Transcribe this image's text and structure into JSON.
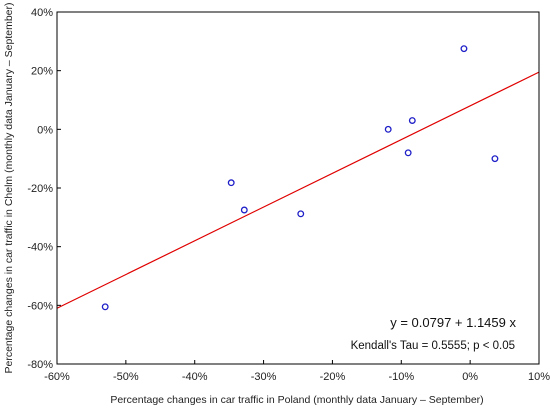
{
  "chart_data": {
    "type": "scatter",
    "title": "",
    "xlabel": "Percentage changes in car traffic in Poland (monthly data January – September)",
    "ylabel": "Percentage changes in car traffic in Chelm (monthly data January – September)",
    "xlim": [
      -60,
      10
    ],
    "ylim": [
      -80,
      40
    ],
    "x_ticks": [
      -60,
      -50,
      -40,
      -30,
      -20,
      -10,
      0,
      10
    ],
    "x_tick_labels": [
      "-60%",
      "-50%",
      "-40%",
      "-30%",
      "-20%",
      "-10%",
      "0%",
      "10%"
    ],
    "y_ticks": [
      -80,
      -60,
      -40,
      -20,
      0,
      20,
      40
    ],
    "y_tick_labels": [
      "-80%",
      "-60%",
      "-40%",
      "-20%",
      "0%",
      "20%",
      "40%"
    ],
    "grid": false,
    "points": [
      {
        "x": -53.0,
        "y": -60.5
      },
      {
        "x": -34.7,
        "y": -18.2
      },
      {
        "x": -32.8,
        "y": -27.5
      },
      {
        "x": -24.6,
        "y": -28.8
      },
      {
        "x": -11.9,
        "y": 0.0
      },
      {
        "x": -9.0,
        "y": -8.0
      },
      {
        "x": -8.4,
        "y": 3.0
      },
      {
        "x": -0.9,
        "y": 27.5
      },
      {
        "x": 3.6,
        "y": -10.0
      }
    ],
    "fit_line": {
      "x": [
        -60,
        10
      ],
      "y": [
        -61.0,
        19.5
      ]
    },
    "annotations": {
      "equation": "y = 0.0797 + 1.1459 x",
      "kendall": "Kendall's Tau = 0.5555; p < 0.05"
    },
    "colors": {
      "points": "#1f1fc8",
      "fit_line": "#e00000",
      "axes": "#000000"
    }
  }
}
